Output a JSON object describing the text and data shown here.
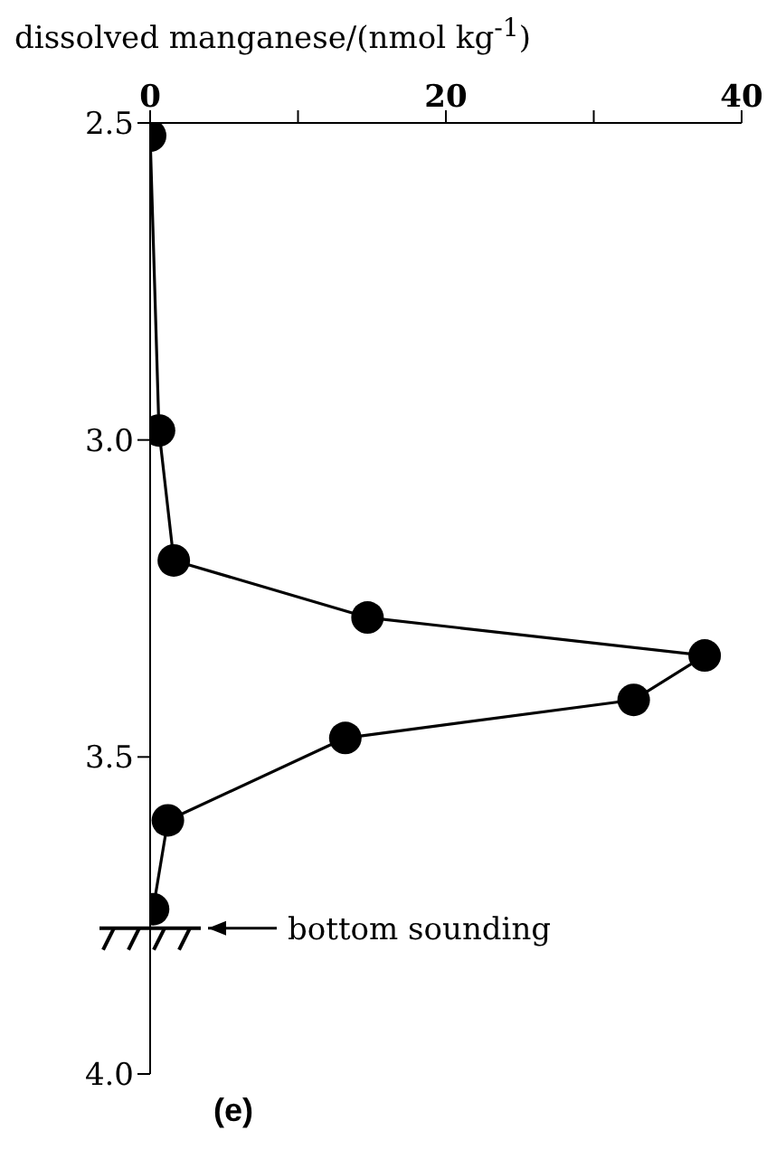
{
  "chart_data": {
    "type": "line",
    "xlabel": "dissolved manganese/(nmol kg$^{-1}$)",
    "x": [
      0,
      0.6,
      1.6,
      14.7,
      37.5,
      32.7,
      13.2,
      1.2,
      0.2
    ],
    "series": [
      {
        "color": "#000000",
        "values": [
          2.52,
          2.985,
          3.19,
          3.28,
          3.34,
          3.41,
          3.47,
          3.6,
          3.74
        ]
      }
    ],
    "xlim": [
      0,
      40
    ],
    "xticks": [
      0,
      {
        "value": 10,
        "label": null
      },
      20,
      {
        "value": 30,
        "label": null
      },
      40
    ],
    "ylim": [
      4.0,
      2.5
    ],
    "yticks": [
      2.5,
      {
        "value": 3,
        "label": "3.0"
      },
      3.5,
      {
        "value": 4,
        "label": "4.0"
      }
    ],
    "marker": "circle",
    "line_style": "solid",
    "ref_lines": [
      {
        "axis": "y",
        "value": 3.77,
        "label": "bottom sounding"
      }
    ],
    "annotations": [
      "(e)"
    ]
  }
}
